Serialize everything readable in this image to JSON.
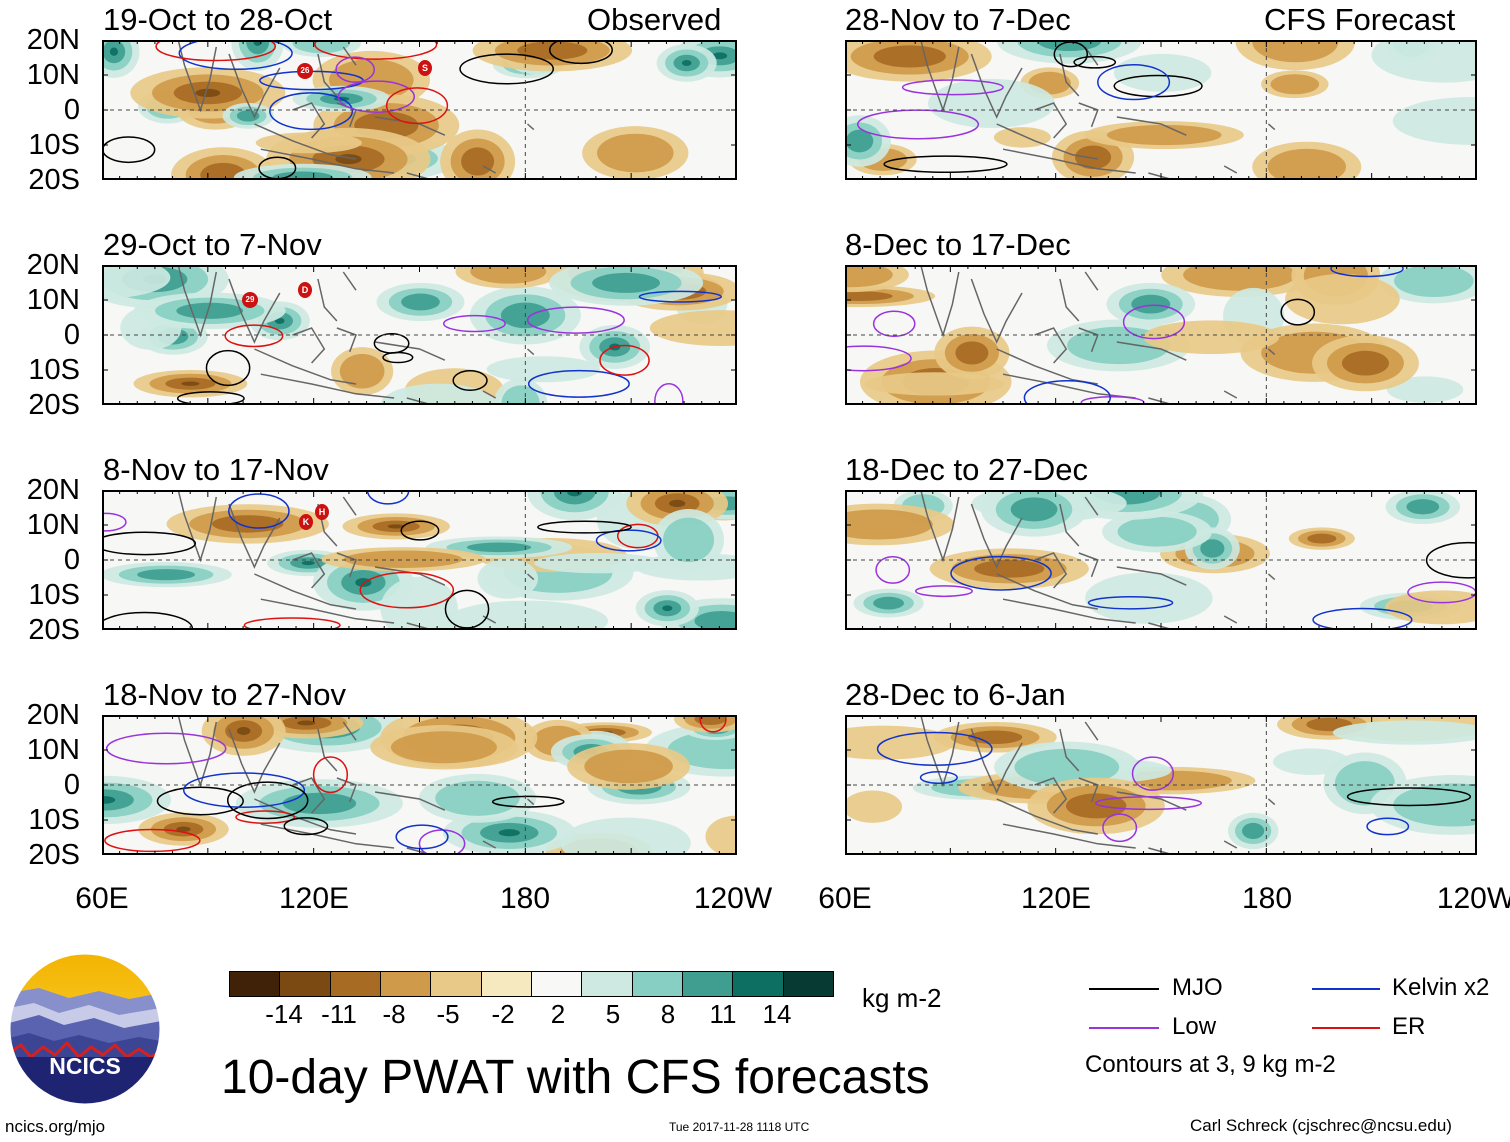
{
  "panels": [
    {
      "id": "p1",
      "title": "19-Oct to 28-Oct",
      "subtitle": "Observed",
      "storms": [
        "26",
        "S"
      ]
    },
    {
      "id": "p2",
      "title": "29-Oct to 7-Nov",
      "subtitle": "",
      "storms": [
        "29",
        "D"
      ]
    },
    {
      "id": "p3",
      "title": "8-Nov to 17-Nov",
      "subtitle": "",
      "storms": [
        "K",
        "H"
      ]
    },
    {
      "id": "p4",
      "title": "18-Nov to 27-Nov",
      "subtitle": "",
      "storms": []
    },
    {
      "id": "p5",
      "title": "28-Nov to 7-Dec",
      "subtitle": "CFS Forecast",
      "storms": []
    },
    {
      "id": "p6",
      "title": "8-Dec to 17-Dec",
      "subtitle": "",
      "storms": []
    },
    {
      "id": "p7",
      "title": "18-Dec to 27-Dec",
      "subtitle": "",
      "storms": []
    },
    {
      "id": "p8",
      "title": "28-Dec to 6-Jan",
      "subtitle": "",
      "storms": []
    }
  ],
  "lat_labels": [
    "20N",
    "10N",
    "0",
    "10S",
    "20S"
  ],
  "lon_labels": [
    "60E",
    "120E",
    "180",
    "120W"
  ],
  "colorbar": {
    "ticks": [
      "-14",
      "-11",
      "-8",
      "-5",
      "-2",
      "2",
      "5",
      "8",
      "11",
      "14"
    ],
    "units": "kg m-2",
    "colors": [
      "#3f2208",
      "#7a4a12",
      "#a86b24",
      "#cf9a4a",
      "#e8c987",
      "#f6e9c0",
      "#f8f8f6",
      "#cde9e2",
      "#87cfc2",
      "#3f9e90",
      "#0c6f62",
      "#063a33"
    ]
  },
  "legend": {
    "items": [
      {
        "label": "MJO",
        "color": "#000000"
      },
      {
        "label": "Low",
        "color": "#9933dd"
      },
      {
        "label": "Kelvin x2",
        "color": "#1133cc"
      },
      {
        "label": "ER",
        "color": "#dd1111"
      }
    ],
    "note": "Contours at 3, 9 kg m-2"
  },
  "main_title": "10-day PWAT with CFS forecasts",
  "logo_text": "NCICS",
  "footer": {
    "left": "ncics.org/mjo",
    "center": "Tue 2017-11-28 1118 UTC",
    "right": "Carl Schreck (cjschrec@ncsu.edu)"
  }
}
